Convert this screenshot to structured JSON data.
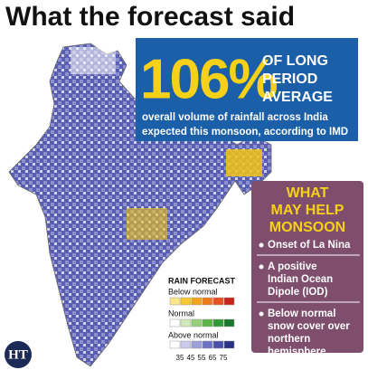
{
  "header": {
    "title": "What the forecast said"
  },
  "highlight": {
    "value": "106%",
    "label_lines": [
      "OF LONG",
      "PERIOD",
      "AVERAGE"
    ],
    "description_lines": [
      "overall volume of rainfall across India",
      "expected this monsoon, according to IMD"
    ]
  },
  "sidebar": {
    "title_lines": [
      "WHAT",
      "MAY HELP",
      "MONSOON"
    ],
    "items": [
      [
        "Onset of La Nina"
      ],
      [
        "A positive",
        "Indian Ocean",
        "Dipole (IOD)"
      ],
      [
        "Below normal",
        "snow cover over",
        "northern",
        "hemisphere"
      ]
    ]
  },
  "legend": {
    "title": "RAIN FORECAST",
    "categories": [
      "Below normal",
      "Normal",
      "Above normal"
    ],
    "scale": [
      35,
      45,
      55,
      65,
      75
    ]
  },
  "logo": "HT"
}
